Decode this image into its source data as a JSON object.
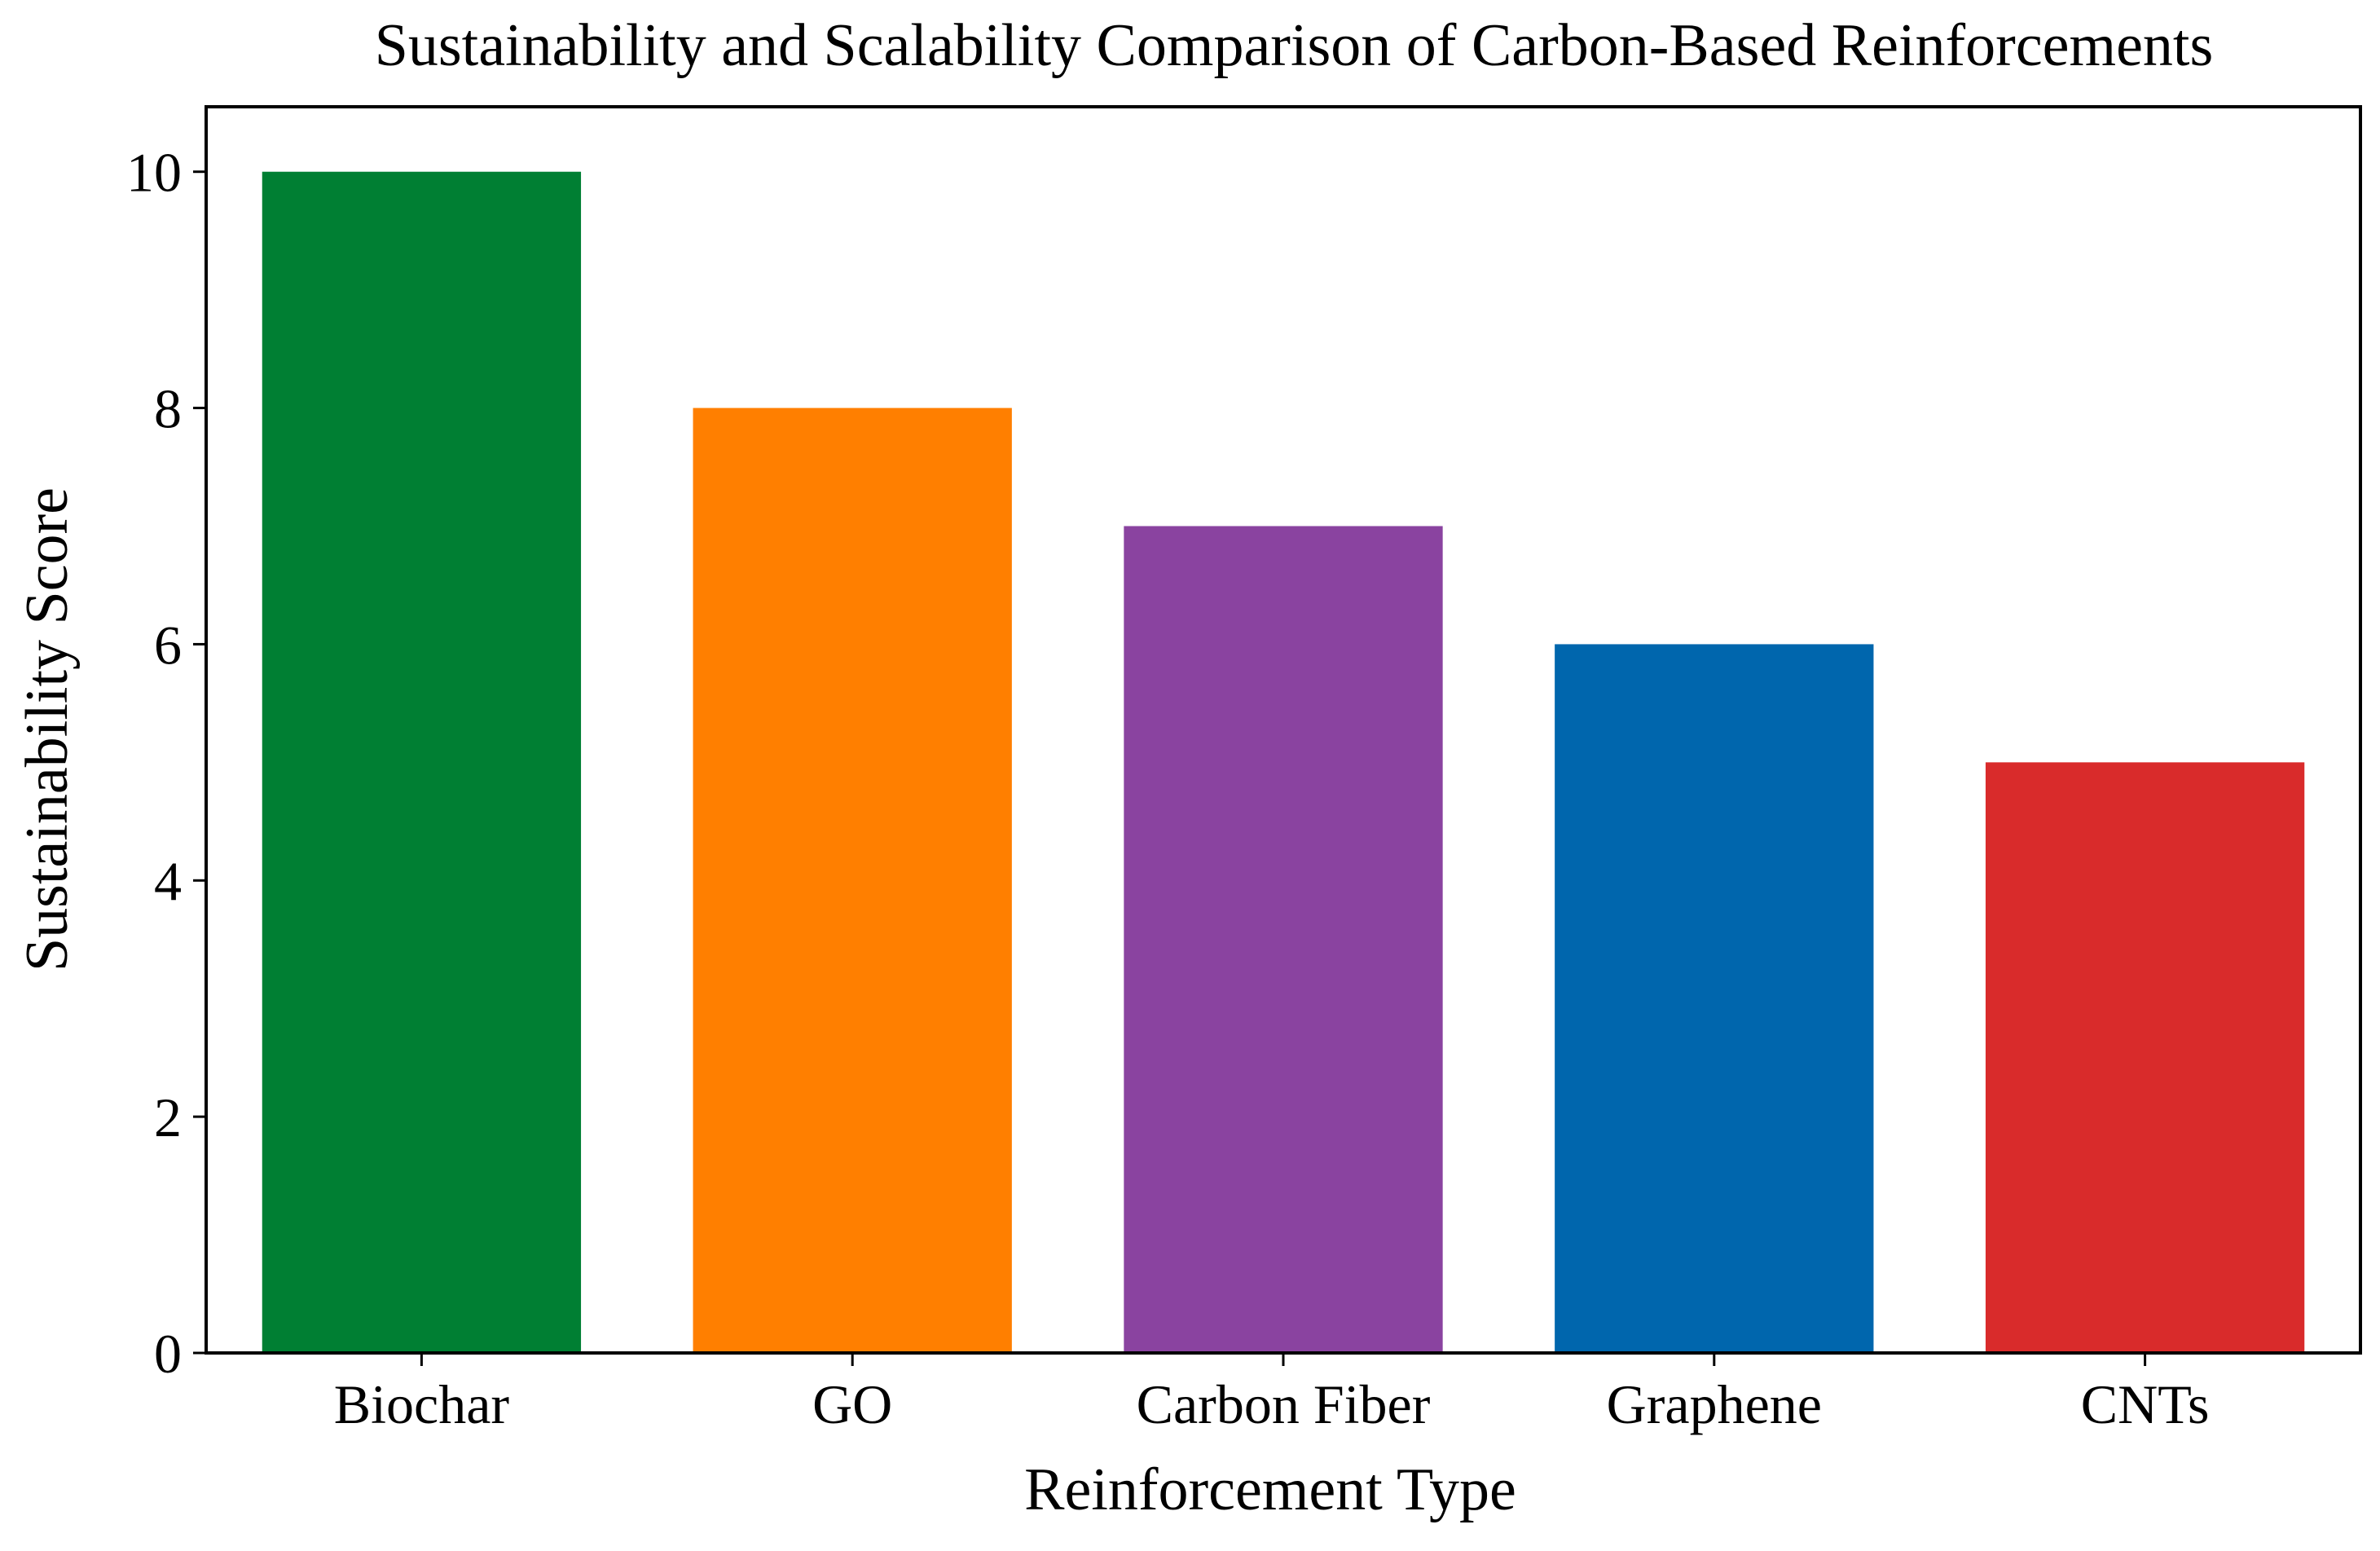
{
  "chart_data": {
    "type": "bar",
    "title": "Sustainability and Scalability Comparison of Carbon-Based Reinforcements",
    "xlabel": "Reinforcement Type",
    "ylabel": "Sustainability Score",
    "categories": [
      "Biochar",
      "GO",
      "Carbon Fiber",
      "Graphene",
      "CNTs"
    ],
    "values": [
      10,
      8,
      7,
      6,
      5
    ],
    "colors": [
      "#007f33",
      "#ff7f00",
      "#8a43a0",
      "#0066ad",
      "#d92b2b"
    ],
    "ylim": [
      0,
      10.55
    ],
    "yticks": [
      0,
      2,
      4,
      6,
      8,
      10
    ],
    "grid": false,
    "legend": "none"
  }
}
